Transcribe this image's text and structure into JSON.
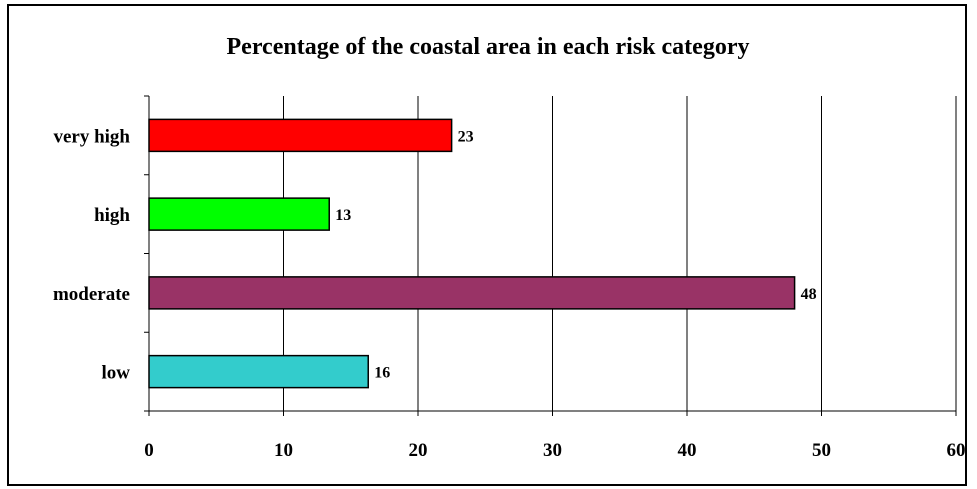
{
  "chart_data": {
    "type": "bar",
    "orientation": "horizontal",
    "title": "Percentage of the coastal area in each risk category",
    "xlabel": "",
    "ylabel": "",
    "categories": [
      "very high",
      "high",
      "moderate",
      "low"
    ],
    "values": [
      23,
      13,
      48,
      16
    ],
    "bar_values": [
      22.5,
      13.4,
      48,
      16.3
    ],
    "bar_colors": [
      "#ff0000",
      "#00ff00",
      "#993366",
      "#33cccc"
    ],
    "xlim": [
      0,
      60
    ],
    "xticks": [
      0,
      10,
      20,
      30,
      40,
      50,
      60
    ],
    "grid": "vertical major gridlines",
    "legend": "none"
  }
}
